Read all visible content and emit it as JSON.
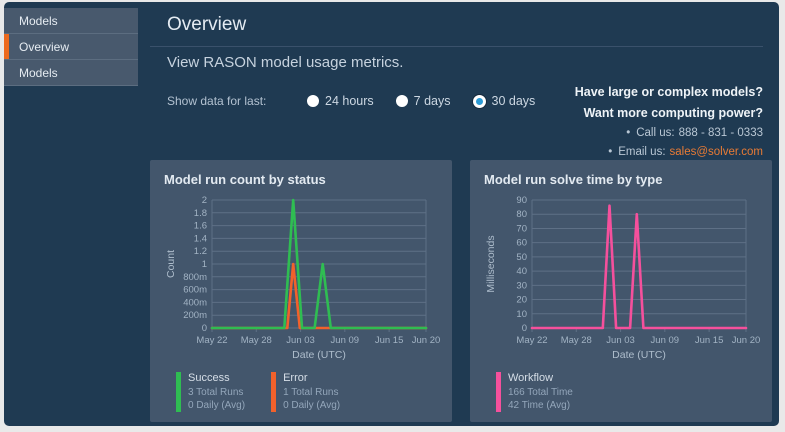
{
  "colors": {
    "accent_orange": "#ed6a1e",
    "link_orange": "#e87b35",
    "radio_blue": "#2d9bd5",
    "success_green": "#2fbd52",
    "error_orange": "#f2612b",
    "workflow_pink": "#f5509c",
    "grid": "#5e7086"
  },
  "sidebar": {
    "items": [
      {
        "label": "Models",
        "active": false
      },
      {
        "label": "Overview",
        "active": true
      },
      {
        "label": "Models",
        "active": false
      }
    ]
  },
  "header": {
    "title": "Overview",
    "subtitle": "View RASON model usage metrics."
  },
  "filter": {
    "label": "Show data for last:",
    "options": [
      {
        "label": "24 hours",
        "selected": false
      },
      {
        "label": "7 days",
        "selected": false
      },
      {
        "label": "30 days",
        "selected": true
      }
    ]
  },
  "promo": {
    "line1": "Have large or complex models?",
    "line2": "Want more computing power?",
    "call_label": "Call us:",
    "phone": "888 - 831 - 0333",
    "email_label": "Email us:",
    "email": "sales@solver.com"
  },
  "chart_data": [
    {
      "type": "line",
      "title": "Model run count by status",
      "xlabel": "Date (UTC)",
      "ylabel": "Count",
      "x_tick_labels": [
        "May 22",
        "May 28",
        "Jun 03",
        "Jun 09",
        "Jun 15",
        "Jun 20"
      ],
      "x_tick_days": [
        0,
        6,
        12,
        18,
        24,
        29
      ],
      "x_range_days": [
        0,
        29
      ],
      "ylim": [
        0,
        2
      ],
      "y_tick_values": [
        2,
        1.8,
        1.6,
        1.4,
        1.2,
        1,
        0.8,
        0.6,
        0.4,
        0.2,
        0
      ],
      "y_tick_labels": [
        "2",
        "1.8",
        "1.6",
        "1.4",
        "1.2",
        "1",
        "800m",
        "600m",
        "400m",
        "200m",
        "0"
      ],
      "series": [
        {
          "name": "Success",
          "color": "#2fbd52",
          "total_label": "3 Total Runs",
          "avg_label": "0 Daily (Avg)",
          "points": [
            [
              0,
              0
            ],
            [
              9.8,
              0
            ],
            [
              11,
              2
            ],
            [
              12.2,
              0
            ],
            [
              13.9,
              0
            ],
            [
              15,
              1
            ],
            [
              16.1,
              0
            ],
            [
              29,
              0
            ]
          ]
        },
        {
          "name": "Error",
          "color": "#f2612b",
          "total_label": "1 Total Runs",
          "avg_label": "0 Daily (Avg)",
          "points": [
            [
              0,
              0
            ],
            [
              10.2,
              0
            ],
            [
              11,
              1
            ],
            [
              11.9,
              0
            ],
            [
              29,
              0
            ]
          ]
        }
      ]
    },
    {
      "type": "line",
      "title": "Model run solve time by type",
      "xlabel": "Date (UTC)",
      "ylabel": "Milliseconds",
      "x_tick_labels": [
        "May 22",
        "May 28",
        "Jun 03",
        "Jun 09",
        "Jun 15",
        "Jun 20"
      ],
      "x_tick_days": [
        0,
        6,
        12,
        18,
        24,
        29
      ],
      "x_range_days": [
        0,
        29
      ],
      "ylim": [
        0,
        90
      ],
      "y_tick_values": [
        90,
        80,
        70,
        60,
        50,
        40,
        30,
        20,
        10,
        0
      ],
      "y_tick_labels": [
        "90",
        "80",
        "70",
        "60",
        "50",
        "40",
        "30",
        "20",
        "10",
        "0"
      ],
      "series": [
        {
          "name": "Workflow",
          "color": "#f5509c",
          "total_label": "166 Total Time",
          "avg_label": "42 Time (Avg)",
          "points": [
            [
              0,
              0
            ],
            [
              9.6,
              0
            ],
            [
              10.5,
              86
            ],
            [
              11.4,
              0
            ],
            [
              13.3,
              0
            ],
            [
              14.2,
              80
            ],
            [
              15.1,
              0
            ],
            [
              29,
              0
            ]
          ]
        }
      ]
    }
  ]
}
